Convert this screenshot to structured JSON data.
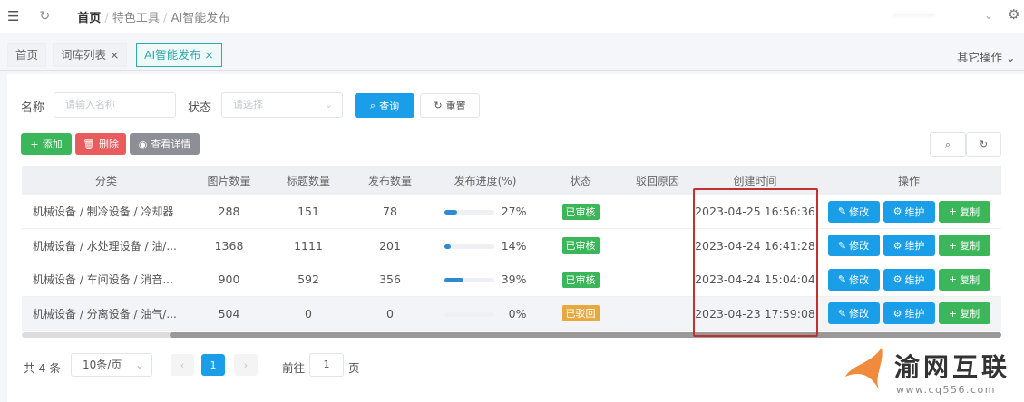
{
  "header": {
    "breadcrumb": [
      "首页",
      "特色工具",
      "AI智能发布"
    ],
    "user": "············"
  },
  "tabs": [
    {
      "label": "首页"
    },
    {
      "label": "词库列表"
    },
    {
      "label": "AI智能发布"
    }
  ],
  "other_ops": "其它操作",
  "search": {
    "name_label": "名称",
    "name_placeholder": "请输入名称",
    "status_label": "状态",
    "status_placeholder": "请选择",
    "query": "查询",
    "reset": "重置"
  },
  "toolbar": {
    "add": "添加",
    "delete": "删除",
    "view": "查看详情"
  },
  "columns": [
    "分类",
    "图片数量",
    "标题数量",
    "发布数量",
    "发布进度(%)",
    "状态",
    "驳回原因",
    "创建时间",
    "操作"
  ],
  "rows": [
    {
      "category": "机械设备 / 制冷设备 / 冷却器",
      "images": "288",
      "titles": "151",
      "published": "78",
      "progress": 27,
      "progress_text": "27%",
      "status": "已审核",
      "reason": "",
      "created": "2023-04-25 16:56:36"
    },
    {
      "category": "机械设备 / 水处理设备 / 油/...",
      "images": "1368",
      "titles": "1111",
      "published": "201",
      "progress": 14,
      "progress_text": "14%",
      "status": "已审核",
      "reason": "",
      "created": "2023-04-24 16:41:28"
    },
    {
      "category": "机械设备 / 车间设备 / 消音...",
      "images": "900",
      "titles": "592",
      "published": "356",
      "progress": 39,
      "progress_text": "39%",
      "status": "已审核",
      "reason": "",
      "created": "2023-04-24 15:04:04"
    },
    {
      "category": "机械设备 / 分离设备 / 油气/...",
      "images": "504",
      "titles": "0",
      "published": "0",
      "progress": 0,
      "progress_text": "0%",
      "status": "已驳回",
      "reason": "",
      "created": "2023-04-23 17:59:08"
    }
  ],
  "row_actions": {
    "edit": "修改",
    "maintain": "维护",
    "copy": "复制"
  },
  "pagination": {
    "total": "共 4 条",
    "page_size": "10条/页",
    "current": "1",
    "goto_label": "前往",
    "goto_value": "1",
    "page_suffix": "页"
  },
  "watermark": {
    "name": "渝网互联",
    "url": "www.cq556.com"
  },
  "colors": {
    "primary": "#1a9ee8",
    "success": "#3cb65a",
    "danger": "#e85c5c",
    "info": "#8e8e96",
    "warning": "#e8a840",
    "highlight_box": "#c0312f"
  }
}
